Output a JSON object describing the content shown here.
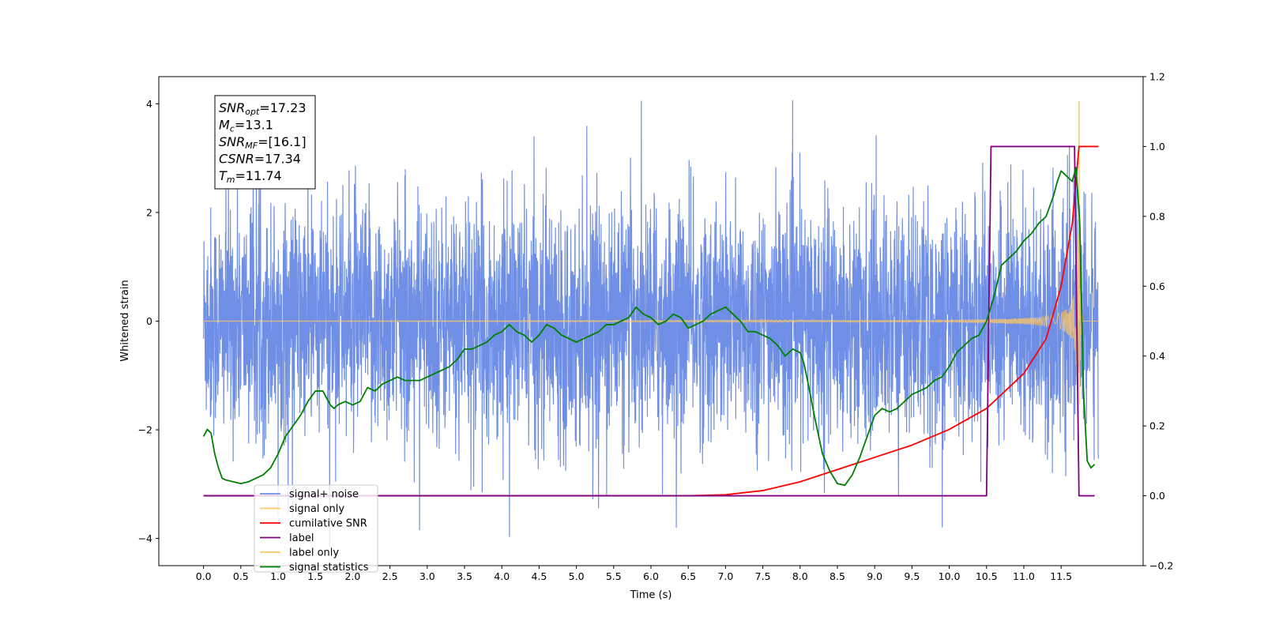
{
  "chart_data": {
    "type": "line",
    "xlabel": "Time (s)",
    "ylabel": "Whitened strain",
    "xlim": [
      -0.6,
      12.6
    ],
    "ylim": [
      -4.5,
      4.5
    ],
    "ylim_right": [
      -0.2,
      1.2
    ],
    "x_ticks": [
      "0.0",
      "0.5",
      "1.0",
      "1.5",
      "2.0",
      "2.5",
      "3.0",
      "3.5",
      "4.0",
      "4.5",
      "5.0",
      "5.5",
      "6.0",
      "6.5",
      "7.0",
      "7.5",
      "8.0",
      "8.5",
      "9.0",
      "9.5",
      "10.0",
      "10.5",
      "11.0",
      "11.5"
    ],
    "y_ticks": [
      "−4",
      "−2",
      "0",
      "2",
      "4"
    ],
    "y_ticks_right": [
      "−0.2",
      "0.0",
      "0.2",
      "0.4",
      "0.6",
      "0.8",
      "1.0",
      "1.2"
    ],
    "grid": false,
    "legend_position": "lower-left",
    "colors": {
      "signal_noise": "#6f8fe6",
      "signal_only": "#ffc766",
      "overlap": "#c0a078",
      "cumulative_snr": "#ff0000",
      "label": "#800080",
      "signal_statistics": "#008000"
    },
    "series": [
      {
        "key": "signal_noise",
        "name": "signal+ noise",
        "axis": "left",
        "description_range": [
          0.0,
          12.0
        ],
        "amplitude_envelope": [
          -4.1,
          4.1
        ]
      },
      {
        "key": "signal_only",
        "name": "signal only",
        "axis": "left",
        "peak_x": 11.74,
        "peak_y": 4.05
      },
      {
        "key": "cumulative_snr",
        "name": "cumilative SNR",
        "axis": "right",
        "x": [
          0.0,
          6.5,
          7.0,
          7.5,
          8.0,
          8.5,
          9.0,
          9.5,
          10.0,
          10.5,
          11.0,
          11.3,
          11.5,
          11.65,
          11.74,
          12.0
        ],
        "y": [
          0.0,
          0.0,
          0.003,
          0.015,
          0.04,
          0.075,
          0.11,
          0.145,
          0.19,
          0.25,
          0.35,
          0.45,
          0.6,
          0.78,
          1.0,
          1.0
        ]
      },
      {
        "key": "label",
        "name": "label",
        "axis": "right",
        "x": [
          0.0,
          10.5,
          10.56,
          11.68,
          11.74,
          11.95
        ],
        "y": [
          0.0,
          0.0,
          1.0,
          1.0,
          0.0,
          0.0
        ]
      },
      {
        "key": "label_only",
        "name": "label only",
        "axis": "right"
      },
      {
        "key": "signal_statistics",
        "name": "signal statistics",
        "axis": "right",
        "x": [
          0.0,
          0.05,
          0.1,
          0.15,
          0.2,
          0.25,
          0.3,
          0.4,
          0.5,
          0.6,
          0.7,
          0.8,
          0.9,
          1.0,
          1.1,
          1.2,
          1.3,
          1.4,
          1.5,
          1.6,
          1.7,
          1.75,
          1.8,
          1.9,
          2.0,
          2.1,
          2.2,
          2.3,
          2.4,
          2.5,
          2.6,
          2.7,
          2.8,
          2.9,
          3.0,
          3.1,
          3.2,
          3.3,
          3.4,
          3.5,
          3.6,
          3.7,
          3.8,
          3.9,
          4.0,
          4.1,
          4.2,
          4.3,
          4.4,
          4.5,
          4.6,
          4.7,
          4.8,
          4.9,
          5.0,
          5.1,
          5.2,
          5.3,
          5.4,
          5.5,
          5.6,
          5.7,
          5.8,
          5.9,
          6.0,
          6.1,
          6.2,
          6.3,
          6.4,
          6.5,
          6.6,
          6.7,
          6.8,
          6.9,
          7.0,
          7.1,
          7.2,
          7.3,
          7.4,
          7.5,
          7.6,
          7.7,
          7.8,
          7.9,
          8.0,
          8.05,
          8.1,
          8.2,
          8.3,
          8.4,
          8.5,
          8.6,
          8.7,
          8.8,
          8.9,
          9.0,
          9.1,
          9.2,
          9.3,
          9.4,
          9.5,
          9.6,
          9.7,
          9.8,
          9.9,
          10.0,
          10.1,
          10.2,
          10.3,
          10.4,
          10.5,
          10.6,
          10.7,
          10.8,
          10.9,
          11.0,
          11.1,
          11.2,
          11.3,
          11.4,
          11.45,
          11.5,
          11.55,
          11.6,
          11.65,
          11.7,
          11.75,
          11.8,
          11.85,
          11.9,
          11.95
        ],
        "y": [
          0.17,
          0.19,
          0.18,
          0.12,
          0.08,
          0.05,
          0.045,
          0.04,
          0.035,
          0.04,
          0.05,
          0.06,
          0.08,
          0.12,
          0.17,
          0.2,
          0.23,
          0.27,
          0.3,
          0.3,
          0.26,
          0.25,
          0.26,
          0.27,
          0.26,
          0.27,
          0.31,
          0.3,
          0.32,
          0.33,
          0.34,
          0.33,
          0.33,
          0.33,
          0.34,
          0.35,
          0.36,
          0.37,
          0.39,
          0.42,
          0.42,
          0.43,
          0.44,
          0.46,
          0.47,
          0.49,
          0.47,
          0.46,
          0.44,
          0.46,
          0.49,
          0.48,
          0.46,
          0.45,
          0.44,
          0.45,
          0.46,
          0.47,
          0.49,
          0.49,
          0.5,
          0.51,
          0.54,
          0.52,
          0.51,
          0.49,
          0.5,
          0.52,
          0.51,
          0.48,
          0.49,
          0.5,
          0.52,
          0.53,
          0.54,
          0.52,
          0.5,
          0.47,
          0.47,
          0.46,
          0.45,
          0.43,
          0.4,
          0.42,
          0.41,
          0.38,
          0.33,
          0.22,
          0.12,
          0.07,
          0.035,
          0.03,
          0.06,
          0.11,
          0.17,
          0.23,
          0.25,
          0.24,
          0.25,
          0.27,
          0.29,
          0.3,
          0.31,
          0.33,
          0.34,
          0.37,
          0.41,
          0.43,
          0.45,
          0.46,
          0.5,
          0.57,
          0.66,
          0.68,
          0.7,
          0.73,
          0.75,
          0.78,
          0.8,
          0.86,
          0.9,
          0.93,
          0.92,
          0.91,
          0.9,
          0.94,
          0.78,
          0.3,
          0.1,
          0.08,
          0.09
        ]
      }
    ],
    "annotation": {
      "lines": [
        {
          "main": "SNR",
          "sub": "opt",
          "value": "=17.23"
        },
        {
          "main": "M",
          "sub": "c",
          "value": "=13.1"
        },
        {
          "main": "SNR",
          "sub": "MF",
          "value": "=[16.1]"
        },
        {
          "main": "CSNR",
          "sub": "",
          "value": "=17.34"
        },
        {
          "main": "T",
          "sub": "m",
          "value": "=11.74"
        }
      ]
    }
  }
}
